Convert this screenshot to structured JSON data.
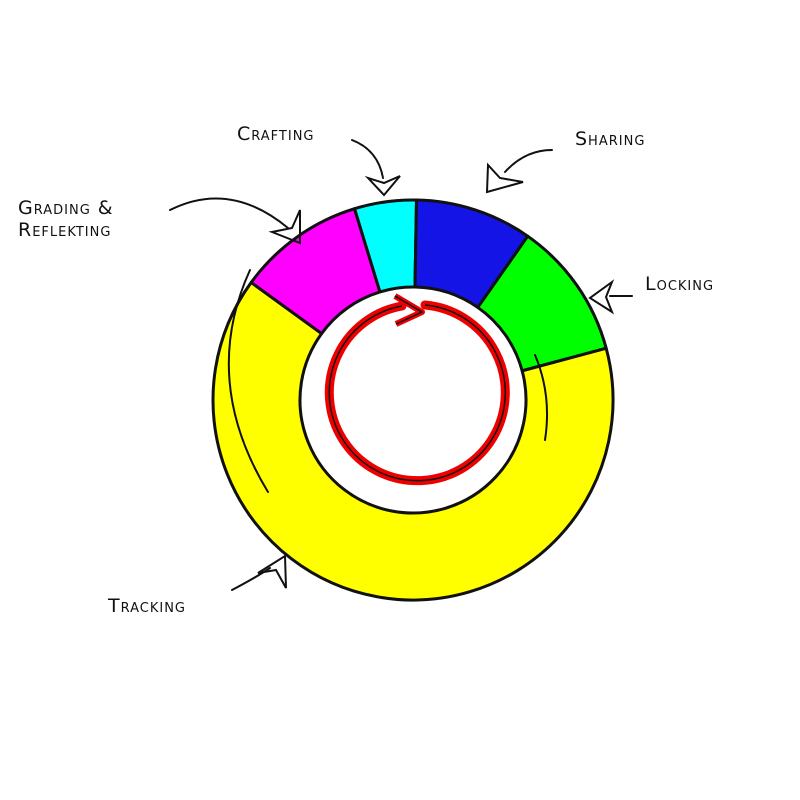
{
  "nodes": [
    {
      "label": "Crafting"
    },
    {
      "label": "Sharing"
    },
    {
      "lines": [
        "Grading &",
        "Reflekting"
      ]
    },
    {
      "label": "Locking"
    },
    {
      "label": "Tracking"
    }
  ]
}
